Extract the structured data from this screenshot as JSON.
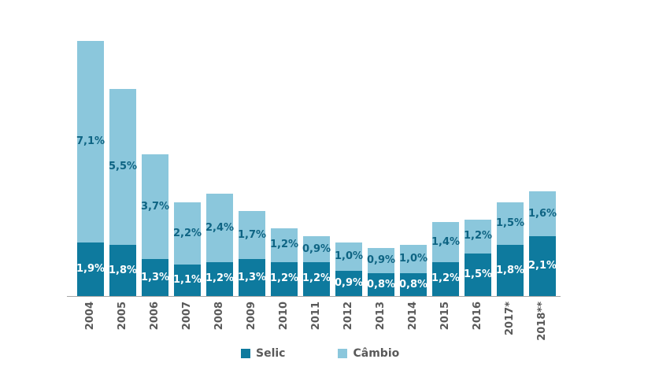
{
  "chart_data": {
    "type": "bar",
    "stacked": true,
    "orientation": "vertical",
    "title": "",
    "xlabel": "",
    "ylabel": "",
    "y_axis_visible": false,
    "grid": false,
    "ylim": [
      0,
      9.5
    ],
    "value_suffix": "%",
    "decimal_separator": ",",
    "legend_position": "bottom",
    "categories": [
      "2004",
      "2005",
      "2006",
      "2007",
      "2008",
      "2009",
      "2010",
      "2011",
      "2012",
      "2013",
      "2014",
      "2015",
      "2016",
      "2017*",
      "2018**"
    ],
    "series": [
      {
        "name": "Selic",
        "color": "#0e7a9e",
        "label_color": "#ffffff",
        "values": [
          1.9,
          1.8,
          1.3,
          1.1,
          1.2,
          1.3,
          1.2,
          1.2,
          0.9,
          0.8,
          0.8,
          1.2,
          1.5,
          1.8,
          2.1
        ],
        "labels": [
          "1,9%",
          "1,8%",
          "1,3%",
          "1,1%",
          "1,2%",
          "1,3%",
          "1,2%",
          "1,2%",
          "0,9%",
          "0,8%",
          "0,8%",
          "1,2%",
          "1,5%",
          "1,8%",
          "2,1%"
        ]
      },
      {
        "name": "Câmbio",
        "color": "#8bc7dc",
        "label_color": "#0e6483",
        "values": [
          7.1,
          5.5,
          3.7,
          2.2,
          2.4,
          1.7,
          1.2,
          0.9,
          1.0,
          0.9,
          1.0,
          1.4,
          1.2,
          1.5,
          1.6
        ],
        "labels": [
          "7,1%",
          "5,5%",
          "3,7%",
          "2,2%",
          "2,4%",
          "1,7%",
          "1,2%",
          "0,9%",
          "1,0%",
          "0,9%",
          "1,0%",
          "1,4%",
          "1,2%",
          "1,5%",
          "1,6%"
        ]
      }
    ],
    "colors": {
      "axis_line": "#a6a6a6",
      "tick_text": "#595959",
      "legend_text": "#595959",
      "background": "#ffffff"
    }
  },
  "legend": {
    "items": [
      {
        "label": "Selic",
        "color": "#0e7a9e"
      },
      {
        "label": "Câmbio",
        "color": "#8bc7dc"
      }
    ]
  }
}
